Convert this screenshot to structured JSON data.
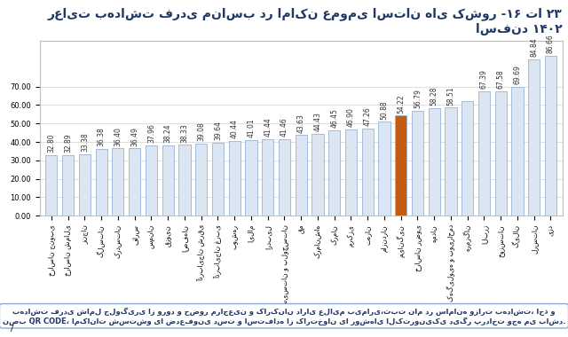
{
  "chart_data": {
    "type": "bar",
    "title": "رعایت بهداشت فردی مناسب در اماکن عمومی استان های کشور -۱۶ تا ۲۳ اسفند ۱۴۰۲",
    "categories": [
      "خراسان جنوبی",
      "خراسان شمالی",
      "زنجان",
      "گلستان",
      "کردستان",
      "فارس",
      "سمنان",
      "قزوین",
      "اصفهان",
      "آذربایجان شرقی",
      "آذربایجان غربی",
      "بوشهر",
      "ایلام",
      "اردبیل",
      "سیستان و بلوچستان",
      "قم",
      "کرمانشاه",
      "کرمان",
      "مرکزی",
      "تهران",
      "مازندران",
      "میانگین",
      "خراسان رضوی",
      "همدان",
      "کهگیلویه و بویراحمد",
      "هرمزگان",
      "البرز",
      "خوزستان",
      "گیلان",
      "لرستان",
      "یزد"
    ],
    "values": [
      32.8,
      32.89,
      33.38,
      36.38,
      36.4,
      36.49,
      37.96,
      38.24,
      38.33,
      39.08,
      39.64,
      40.44,
      41.01,
      41.44,
      41.46,
      43.63,
      44.43,
      46.45,
      46.9,
      47.26,
      50.88,
      54.22,
      56.79,
      58.28,
      58.51,
      62.2,
      67.39,
      67.58,
      69.69,
      84.84,
      86.66
    ],
    "value_labels": [
      "32.80",
      "32.89",
      "33.38",
      "36.38",
      "36.40",
      "36.49",
      "37.96",
      "38.24",
      "38.33",
      "39.08",
      "39.64",
      "40.44",
      "41.01",
      "41.44",
      "41.46",
      "43.63",
      "44.43",
      "46.45",
      "46.90",
      "47.26",
      "50.88",
      "54.22",
      "56.79",
      "58.28",
      "58.51",
      null,
      "67.39",
      "67.58",
      "69.69",
      "84.84",
      "86.66"
    ],
    "colors": [
      "#dce6f2",
      "#dce6f2",
      "#dce6f2",
      "#dce6f2",
      "#dce6f2",
      "#dce6f2",
      "#dce6f2",
      "#dce6f2",
      "#dce6f2",
      "#dce6f2",
      "#dce6f2",
      "#dce6f2",
      "#dce6f2",
      "#dce6f2",
      "#dce6f2",
      "#dce6f2",
      "#dce6f2",
      "#dce6f2",
      "#dce6f2",
      "#dce6f2",
      "#dce6f2",
      "#c55a11",
      "#dce6f2",
      "#dce6f2",
      "#dce6f2",
      "#dce6f2",
      "#dce6f2",
      "#dce6f2",
      "#dce6f2",
      "#dce6f2",
      "#dce6f2"
    ],
    "ylim": [
      0,
      95
    ],
    "yticks": [
      {
        "value": 0,
        "label": "0.00"
      },
      {
        "value": 10,
        "label": "10.00"
      },
      {
        "value": 20,
        "label": "20.00"
      },
      {
        "value": 30,
        "label": "30.00"
      },
      {
        "value": 40,
        "label": "40.00"
      },
      {
        "value": 50,
        "label": "50.00"
      },
      {
        "value": 60,
        "label": "60.00"
      },
      {
        "value": 70,
        "label": "70.00"
      }
    ],
    "grid": true,
    "data_labels": true,
    "annotations": [
      "بهداشت فردی شامل جلوگیری از ورود و حضور مراجعین و کارکنان دارای علایم بیماری،ثبت نام در سامانه وزارت بهداشت، اخذ و نصب QR CODE، امکانات شستشو یا ضدعفونی دست و استفاده از کارتخوان یا روشهای الکترونیکی دیگر پرداخت وجه می باشد.",
      "7"
    ]
  }
}
